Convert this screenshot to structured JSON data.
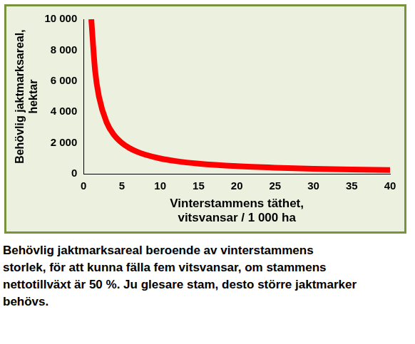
{
  "chart_data": {
    "type": "line",
    "x_label": [
      "Vinterstammens täthet,",
      "vitsvansar / 1 000 ha"
    ],
    "y_label": [
      "Behövlig jaktmarksareal,",
      "hektar"
    ],
    "caption": "Behövlig jaktmarksareal beroende av vinterstammens storlek, för att kunna fälla fem vitsvansar, om stammens nettotillväxt är 50 %. Ju glesare stam, desto större jaktmarker behövs.",
    "x": [
      1,
      1.5,
      2,
      3,
      4,
      5,
      6,
      7,
      8,
      10,
      12,
      15,
      20,
      25,
      30,
      35,
      40
    ],
    "values": [
      10000,
      6667,
      5000,
      3333,
      2500,
      2000,
      1667,
      1429,
      1250,
      1000,
      833,
      667,
      500,
      400,
      333,
      286,
      250
    ],
    "color": "#ff0000",
    "xlim": [
      0,
      40
    ],
    "xticks": [
      0,
      5,
      10,
      15,
      20,
      25,
      30,
      35,
      40
    ],
    "ylim": [
      0,
      10000
    ],
    "yticks": [
      0,
      {
        "value": 2000,
        "label": "2 000"
      },
      {
        "value": 4000,
        "label": "4 000"
      },
      {
        "value": 6000,
        "label": "6 000"
      },
      {
        "value": 8000,
        "label": "8 000"
      },
      {
        "value": 10000,
        "label": "10 000"
      }
    ],
    "grid": false
  }
}
